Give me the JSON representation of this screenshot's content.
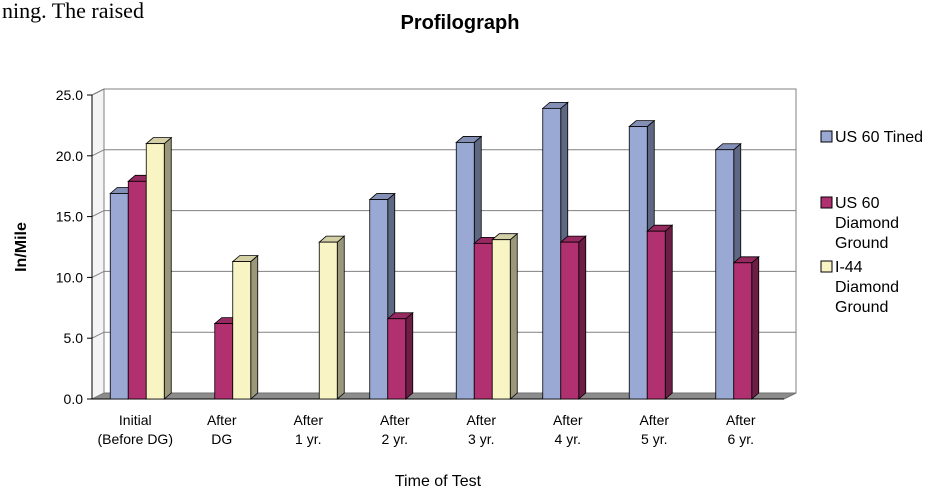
{
  "page": {
    "top_text_fragment": "ning.  The raised"
  },
  "chart_data": {
    "type": "bar",
    "title": "Profilograph",
    "xlabel": "Time of Test",
    "ylabel": "In/Mile",
    "ylim": [
      0,
      25
    ],
    "y_ticks": [
      "0.0",
      "5.0",
      "10.0",
      "15.0",
      "20.0",
      "25.0"
    ],
    "grid": true,
    "legend_position": "right",
    "categories": [
      [
        "Initial",
        "(Before DG)"
      ],
      [
        "After",
        "DG"
      ],
      [
        "After",
        "1 yr."
      ],
      [
        "After",
        "2 yr."
      ],
      [
        "After",
        "3 yr."
      ],
      [
        "After",
        "4 yr."
      ],
      [
        "After",
        "5 yr."
      ],
      [
        "After",
        "6 yr."
      ]
    ],
    "series": [
      {
        "name": "US 60 Tined",
        "legend_lines": [
          "US 60 Tined"
        ],
        "color": "#9aa8d4",
        "values": [
          16.9,
          null,
          null,
          16.4,
          21.1,
          23.9,
          22.4,
          20.5
        ]
      },
      {
        "name": "US 60 Diamond Ground",
        "legend_lines": [
          "US 60",
          "Diamond",
          "Ground"
        ],
        "color": "#b03070",
        "values": [
          17.9,
          6.2,
          null,
          6.6,
          12.8,
          12.9,
          13.8,
          11.2
        ]
      },
      {
        "name": "I-44 Diamond Ground",
        "legend_lines": [
          "I-44",
          "Diamond",
          "Ground"
        ],
        "color": "#f8f4c4",
        "values": [
          21.0,
          11.3,
          12.9,
          null,
          13.1,
          null,
          null,
          null
        ]
      }
    ]
  }
}
